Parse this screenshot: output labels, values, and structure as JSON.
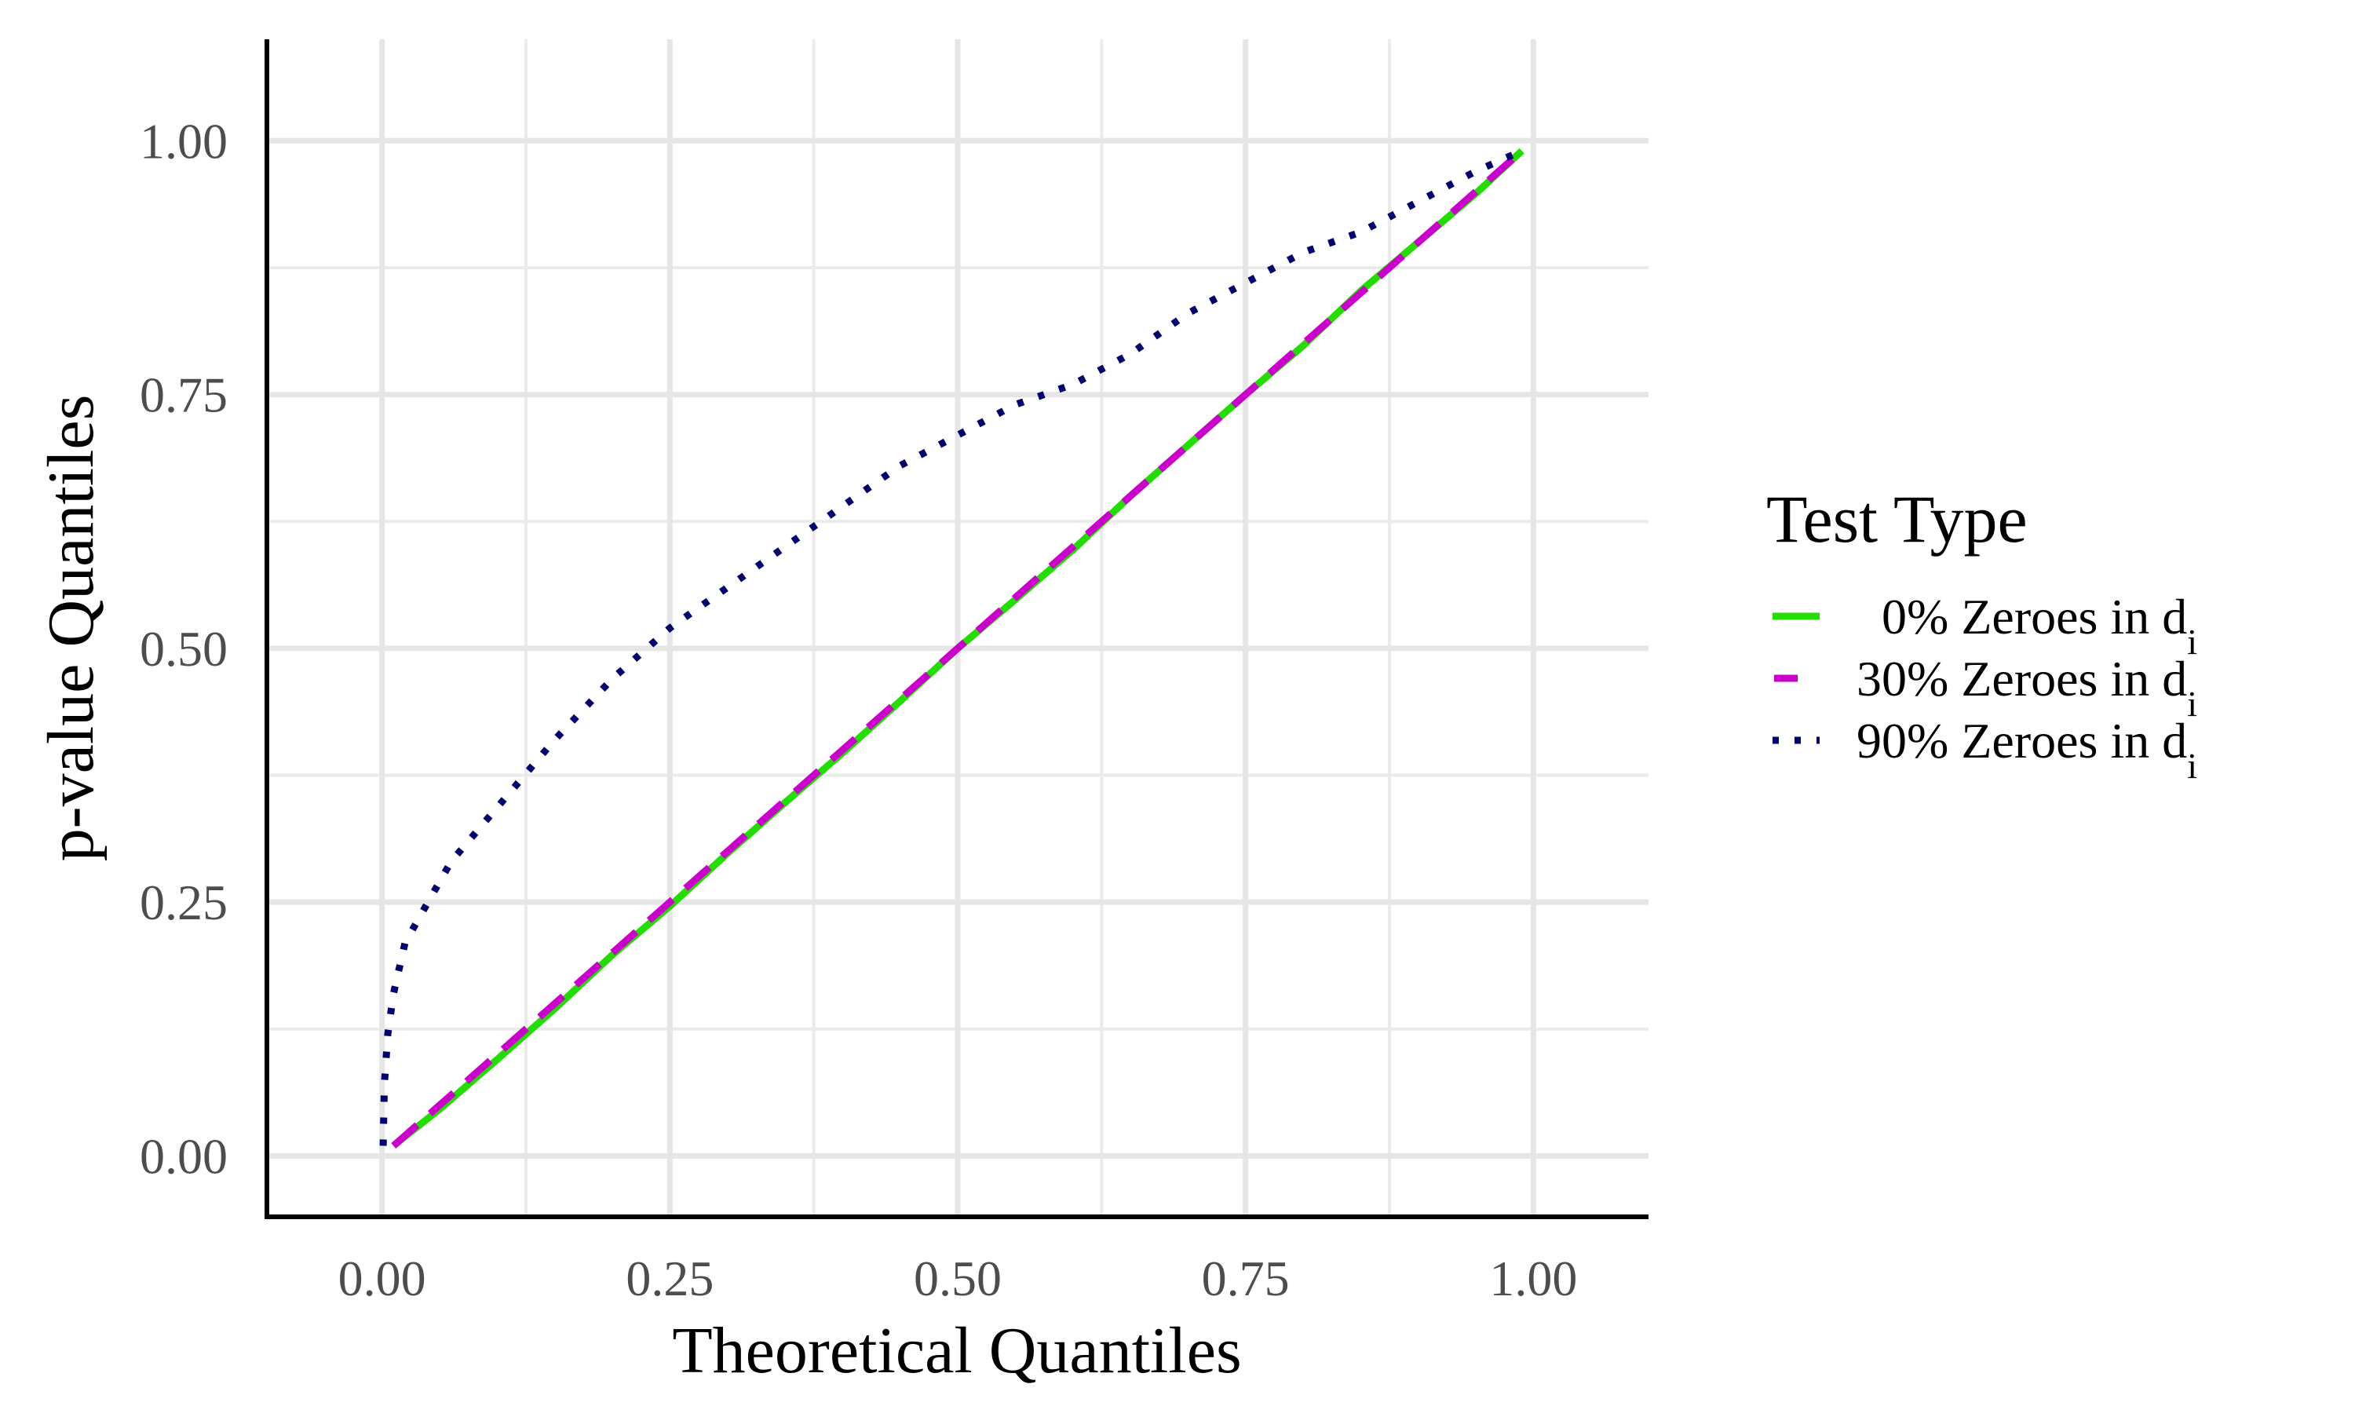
{
  "chart_data": {
    "type": "line",
    "title": "",
    "xlabel": "Theoretical Quantiles",
    "ylabel": "p-value Quantiles",
    "xlim": [
      -0.1,
      1.1
    ],
    "ylim": [
      -0.06,
      1.1
    ],
    "x_ticks": [
      0,
      0.25,
      0.5,
      0.75,
      1
    ],
    "x_tick_labels": [
      "0.00",
      "0.25",
      "0.50",
      "0.75",
      "1.00"
    ],
    "y_ticks": [
      0,
      0.25,
      0.5,
      0.75,
      1
    ],
    "y_tick_labels": [
      "0.00",
      "0.25",
      "0.50",
      "0.75",
      "1.00"
    ],
    "grid": true,
    "legend": {
      "title": "Test Type",
      "position": "right"
    },
    "series": [
      {
        "name": "0% Zeroes in d",
        "name_subscript": "i",
        "legend_pad": "  ",
        "color": "#22dd00",
        "dash": "solid",
        "points": [
          [
            0.01,
            0.01
          ],
          [
            0.05,
            0.046
          ],
          [
            0.1,
            0.095
          ],
          [
            0.15,
            0.145
          ],
          [
            0.2,
            0.198
          ],
          [
            0.25,
            0.246
          ],
          [
            0.3,
            0.298
          ],
          [
            0.35,
            0.348
          ],
          [
            0.4,
            0.397
          ],
          [
            0.45,
            0.448
          ],
          [
            0.5,
            0.5
          ],
          [
            0.55,
            0.548
          ],
          [
            0.6,
            0.597
          ],
          [
            0.65,
            0.65
          ],
          [
            0.7,
            0.7
          ],
          [
            0.75,
            0.75
          ],
          [
            0.8,
            0.798
          ],
          [
            0.85,
            0.852
          ],
          [
            0.9,
            0.9
          ],
          [
            0.95,
            0.948
          ],
          [
            0.99,
            0.99
          ]
        ]
      },
      {
        "name": "30% Zeroes in d",
        "name_subscript": "i",
        "legend_pad": "",
        "color": "#cc00cc",
        "dash": "dashed",
        "points": [
          [
            0.01,
            0.01
          ],
          [
            0.05,
            0.05
          ],
          [
            0.1,
            0.1
          ],
          [
            0.15,
            0.15
          ],
          [
            0.2,
            0.2
          ],
          [
            0.25,
            0.25
          ],
          [
            0.3,
            0.3
          ],
          [
            0.35,
            0.35
          ],
          [
            0.4,
            0.4
          ],
          [
            0.45,
            0.45
          ],
          [
            0.5,
            0.5
          ],
          [
            0.55,
            0.55
          ],
          [
            0.6,
            0.6
          ],
          [
            0.65,
            0.65
          ],
          [
            0.7,
            0.7
          ],
          [
            0.75,
            0.75
          ],
          [
            0.8,
            0.8
          ],
          [
            0.85,
            0.85
          ],
          [
            0.9,
            0.9
          ],
          [
            0.95,
            0.95
          ],
          [
            0.99,
            0.99
          ]
        ]
      },
      {
        "name": "90% Zeroes in d",
        "name_subscript": "i",
        "legend_pad": "",
        "color": "#00006e",
        "dash": "dotted",
        "points": [
          [
            0.001,
            0.01
          ],
          [
            0.002,
            0.07
          ],
          [
            0.005,
            0.12
          ],
          [
            0.01,
            0.16
          ],
          [
            0.02,
            0.21
          ],
          [
            0.04,
            0.25
          ],
          [
            0.06,
            0.29
          ],
          [
            0.09,
            0.33
          ],
          [
            0.12,
            0.37
          ],
          [
            0.15,
            0.41
          ],
          [
            0.2,
            0.47
          ],
          [
            0.25,
            0.52
          ],
          [
            0.3,
            0.56
          ],
          [
            0.35,
            0.6
          ],
          [
            0.4,
            0.64
          ],
          [
            0.45,
            0.68
          ],
          [
            0.5,
            0.71
          ],
          [
            0.55,
            0.74
          ],
          [
            0.6,
            0.76
          ],
          [
            0.65,
            0.79
          ],
          [
            0.7,
            0.83
          ],
          [
            0.75,
            0.86
          ],
          [
            0.8,
            0.89
          ],
          [
            0.85,
            0.91
          ],
          [
            0.9,
            0.94
          ],
          [
            0.95,
            0.97
          ],
          [
            0.99,
            0.99
          ]
        ]
      }
    ]
  }
}
